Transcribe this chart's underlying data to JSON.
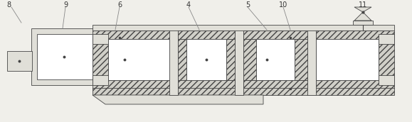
{
  "bg_color": "#f0efea",
  "line_color": "#444444",
  "hatch_fc": "#d0cfc8",
  "white_fc": "#ffffff",
  "gray_fc": "#e0dfd8",
  "fig_width": 5.79,
  "fig_height": 1.72,
  "dpi": 100,
  "label_color": "#333333",
  "leader_color": "#888888"
}
